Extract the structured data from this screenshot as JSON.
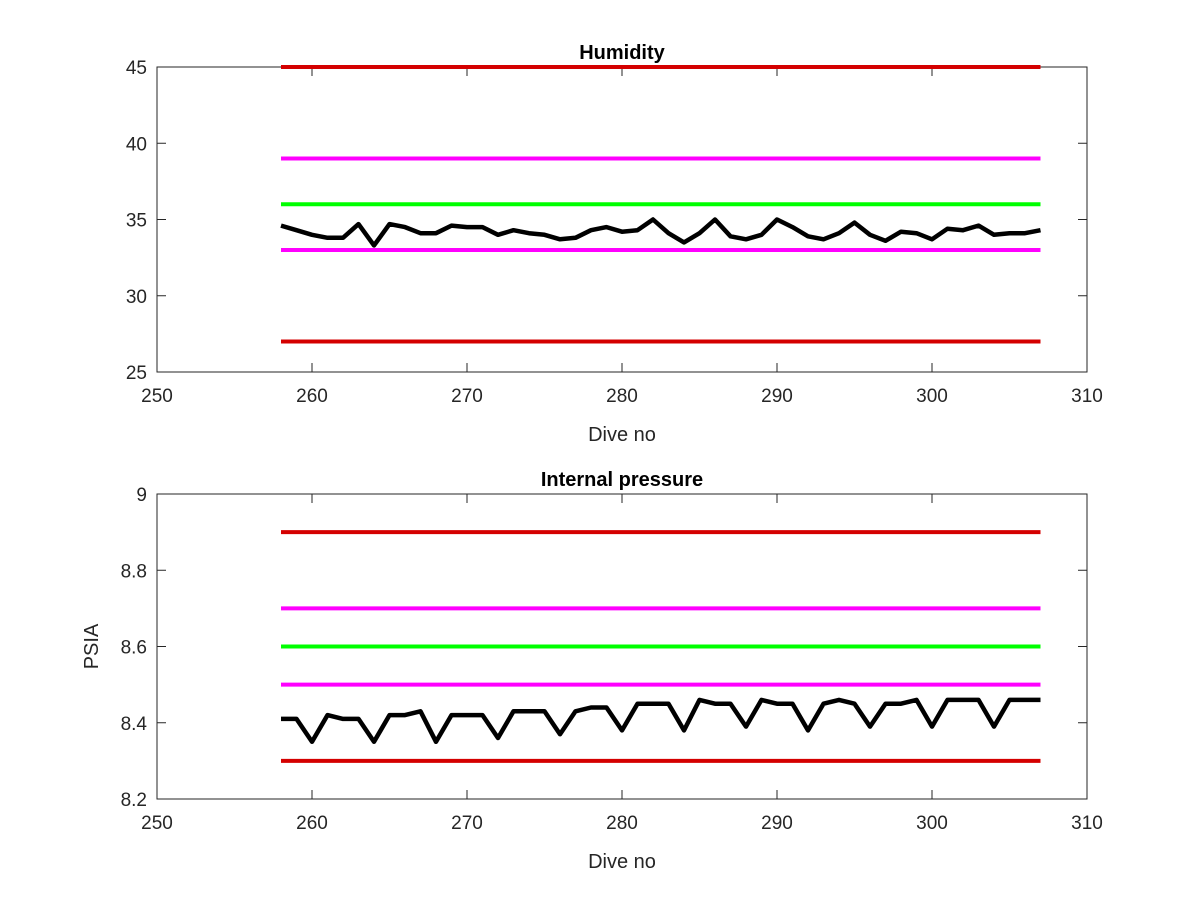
{
  "colors": {
    "red": "#d40000",
    "magenta": "#ff00ff",
    "green": "#00ff00",
    "black": "#000000"
  },
  "chart_data": [
    {
      "type": "line",
      "title": "Humidity",
      "xlabel": "Dive no",
      "ylabel": "",
      "xlim": [
        250,
        310
      ],
      "ylim": [
        25,
        45
      ],
      "xticks": [
        250,
        260,
        270,
        280,
        290,
        300,
        310
      ],
      "yticks": [
        25,
        30,
        35,
        40,
        45
      ],
      "grid": false,
      "series": [
        {
          "color": "#d40000",
          "x": [
            258,
            307
          ],
          "y": [
            45,
            45
          ]
        },
        {
          "color": "#ff00ff",
          "x": [
            258,
            307
          ],
          "y": [
            39,
            39
          ]
        },
        {
          "color": "#00ff00",
          "x": [
            258,
            307
          ],
          "y": [
            36,
            36
          ]
        },
        {
          "color": "#ff00ff",
          "x": [
            258,
            307
          ],
          "y": [
            33,
            33
          ]
        },
        {
          "color": "#d40000",
          "x": [
            258,
            307
          ],
          "y": [
            27,
            27
          ]
        },
        {
          "color": "#000000",
          "x": [
            258,
            259,
            260,
            261,
            262,
            263,
            264,
            265,
            266,
            267,
            268,
            269,
            270,
            271,
            272,
            273,
            274,
            275,
            276,
            277,
            278,
            279,
            280,
            281,
            282,
            283,
            284,
            285,
            286,
            287,
            288,
            289,
            290,
            291,
            292,
            293,
            294,
            295,
            296,
            297,
            298,
            299,
            300,
            301,
            302,
            303,
            304,
            305,
            306,
            307
          ],
          "y": [
            34.6,
            34.3,
            34.0,
            33.8,
            33.8,
            34.7,
            33.3,
            34.7,
            34.5,
            34.1,
            34.1,
            34.6,
            34.5,
            34.5,
            34.0,
            34.3,
            34.1,
            34.0,
            33.7,
            33.8,
            34.3,
            34.5,
            34.2,
            34.3,
            35.0,
            34.1,
            33.5,
            34.1,
            35.0,
            33.9,
            33.7,
            34.0,
            35.0,
            34.5,
            33.9,
            33.7,
            34.1,
            34.8,
            34.0,
            33.6,
            34.2,
            34.1,
            33.7,
            34.4,
            34.3,
            34.6,
            34.0,
            34.1,
            34.1,
            34.3
          ]
        }
      ]
    },
    {
      "type": "line",
      "title": "Internal pressure",
      "xlabel": "Dive no",
      "ylabel": "PSIA",
      "xlim": [
        250,
        310
      ],
      "ylim": [
        8.2,
        9
      ],
      "xticks": [
        250,
        260,
        270,
        280,
        290,
        300,
        310
      ],
      "yticks": [
        8.2,
        8.4,
        8.6,
        8.8,
        9
      ],
      "grid": false,
      "series": [
        {
          "color": "#d40000",
          "x": [
            258,
            307
          ],
          "y": [
            8.9,
            8.9
          ]
        },
        {
          "color": "#ff00ff",
          "x": [
            258,
            307
          ],
          "y": [
            8.7,
            8.7
          ]
        },
        {
          "color": "#00ff00",
          "x": [
            258,
            307
          ],
          "y": [
            8.6,
            8.6
          ]
        },
        {
          "color": "#ff00ff",
          "x": [
            258,
            307
          ],
          "y": [
            8.5,
            8.5
          ]
        },
        {
          "color": "#d40000",
          "x": [
            258,
            307
          ],
          "y": [
            8.3,
            8.3
          ]
        },
        {
          "color": "#000000",
          "x": [
            258,
            259,
            260,
            261,
            262,
            263,
            264,
            265,
            266,
            267,
            268,
            269,
            270,
            271,
            272,
            273,
            274,
            275,
            276,
            277,
            278,
            279,
            280,
            281,
            282,
            283,
            284,
            285,
            286,
            287,
            288,
            289,
            290,
            291,
            292,
            293,
            294,
            295,
            296,
            297,
            298,
            299,
            300,
            301,
            302,
            303,
            304,
            305,
            306,
            307
          ],
          "y": [
            8.41,
            8.41,
            8.35,
            8.42,
            8.41,
            8.41,
            8.35,
            8.42,
            8.42,
            8.43,
            8.35,
            8.42,
            8.42,
            8.42,
            8.36,
            8.43,
            8.43,
            8.43,
            8.37,
            8.43,
            8.44,
            8.44,
            8.38,
            8.45,
            8.45,
            8.45,
            8.38,
            8.46,
            8.45,
            8.45,
            8.39,
            8.46,
            8.45,
            8.45,
            8.38,
            8.45,
            8.46,
            8.45,
            8.39,
            8.45,
            8.45,
            8.46,
            8.39,
            8.46,
            8.46,
            8.46,
            8.39,
            8.46,
            8.46,
            8.46
          ]
        }
      ]
    }
  ]
}
